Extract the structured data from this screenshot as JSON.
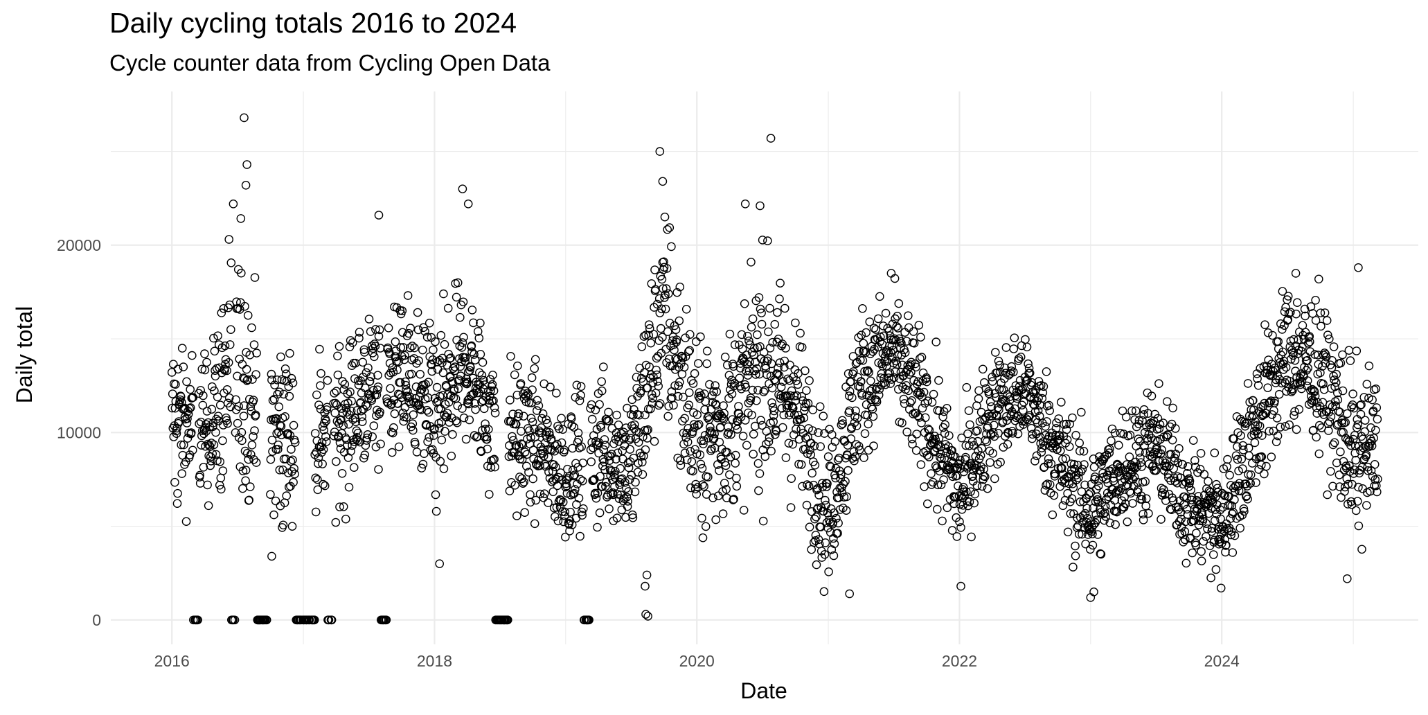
{
  "chart_data": {
    "type": "scatter",
    "title": "Daily cycling totals 2016 to 2024",
    "subtitle": "Cycle counter data from Cycling Open Data",
    "xlabel": "Date",
    "ylabel": "Daily total",
    "x_ticks": [
      "2016",
      "2018",
      "2020",
      "2022",
      "2024"
    ],
    "y_ticks": [
      "0",
      "10000",
      "20000"
    ],
    "xlim": [
      "2015-07-15",
      "2025-07-01"
    ],
    "ylim": [
      -1300,
      28200
    ],
    "grid": true,
    "marker": "open-circle",
    "marker_color": "#000000",
    "grid_color": "#ebebeb",
    "monthly_profile": [
      {
        "month": "2016-01",
        "mean": 11000,
        "spread": 3500
      },
      {
        "month": "2016-04",
        "mean": 10500,
        "spread": 3200
      },
      {
        "month": "2016-07",
        "mean": 14000,
        "spread": 5500
      },
      {
        "month": "2016-10",
        "mean": 10500,
        "spread": 4000
      },
      {
        "month": "2017-01",
        "mean": 10000,
        "spread": 3500
      },
      {
        "month": "2017-04",
        "mean": 10500,
        "spread": 3000
      },
      {
        "month": "2017-07",
        "mean": 12500,
        "spread": 3000
      },
      {
        "month": "2017-10",
        "mean": 13500,
        "spread": 3000
      },
      {
        "month": "2018-01",
        "mean": 11000,
        "spread": 3500
      },
      {
        "month": "2018-04",
        "mean": 14000,
        "spread": 3500
      },
      {
        "month": "2018-07",
        "mean": 10000,
        "spread": 3000
      },
      {
        "month": "2018-10",
        "mean": 10000,
        "spread": 3000
      },
      {
        "month": "2019-01",
        "mean": 8000,
        "spread": 2800
      },
      {
        "month": "2019-04",
        "mean": 9500,
        "spread": 3000
      },
      {
        "month": "2019-07",
        "mean": 8500,
        "spread": 3000
      },
      {
        "month": "2019-10",
        "mean": 17000,
        "spread": 4500
      },
      {
        "month": "2020-01",
        "mean": 10000,
        "spread": 4000
      },
      {
        "month": "2020-04",
        "mean": 11000,
        "spread": 3500
      },
      {
        "month": "2020-07",
        "mean": 14000,
        "spread": 4500
      },
      {
        "month": "2020-10",
        "mean": 12000,
        "spread": 3500
      },
      {
        "month": "2021-01",
        "mean": 6000,
        "spread": 3000
      },
      {
        "month": "2021-04",
        "mean": 13000,
        "spread": 3000
      },
      {
        "month": "2021-07",
        "mean": 14500,
        "spread": 2500
      },
      {
        "month": "2021-10",
        "mean": 11000,
        "spread": 3000
      },
      {
        "month": "2022-01",
        "mean": 7000,
        "spread": 2500
      },
      {
        "month": "2022-04",
        "mean": 11500,
        "spread": 2500
      },
      {
        "month": "2022-07",
        "mean": 12500,
        "spread": 2500
      },
      {
        "month": "2022-10",
        "mean": 9000,
        "spread": 2500
      },
      {
        "month": "2023-01",
        "mean": 6000,
        "spread": 2500
      },
      {
        "month": "2023-04",
        "mean": 8500,
        "spread": 2500
      },
      {
        "month": "2023-07",
        "mean": 9500,
        "spread": 2500
      },
      {
        "month": "2023-10",
        "mean": 6500,
        "spread": 2500
      },
      {
        "month": "2024-01",
        "mean": 5500,
        "spread": 2500
      },
      {
        "month": "2024-04",
        "mean": 10500,
        "spread": 2800
      },
      {
        "month": "2024-07",
        "mean": 14500,
        "spread": 3000
      },
      {
        "month": "2024-10",
        "mean": 13500,
        "spread": 3000
      },
      {
        "month": "2025-01",
        "mean": 9000,
        "spread": 3500
      },
      {
        "month": "2025-03",
        "mean": 9500,
        "spread": 3000
      }
    ],
    "zero_day_clusters": [
      {
        "start": "2016-03-01",
        "end": "2016-03-15"
      },
      {
        "start": "2016-06-15",
        "end": "2016-06-25"
      },
      {
        "start": "2016-08-25",
        "end": "2016-09-30"
      },
      {
        "start": "2016-12-10",
        "end": "2017-02-01"
      },
      {
        "start": "2017-03-10",
        "end": "2017-03-25"
      },
      {
        "start": "2017-08-05",
        "end": "2017-08-20"
      },
      {
        "start": "2018-06-20",
        "end": "2018-07-25"
      },
      {
        "start": "2019-02-20",
        "end": "2019-03-10"
      }
    ],
    "notable_points": [
      {
        "x": "2016-07-20",
        "y": 26800
      },
      {
        "x": "2016-07-28",
        "y": 24300
      },
      {
        "x": "2016-07-25",
        "y": 23200
      },
      {
        "x": "2016-06-20",
        "y": 22200
      },
      {
        "x": "2017-07-30",
        "y": 21600
      },
      {
        "x": "2018-03-20",
        "y": 23000
      },
      {
        "x": "2018-04-05",
        "y": 22200
      },
      {
        "x": "2019-09-20",
        "y": 25000
      },
      {
        "x": "2019-09-28",
        "y": 23400
      },
      {
        "x": "2020-07-25",
        "y": 25700
      },
      {
        "x": "2020-05-15",
        "y": 22200
      },
      {
        "x": "2020-06-25",
        "y": 22100
      },
      {
        "x": "2021-06-25",
        "y": 18500
      },
      {
        "x": "2024-07-25",
        "y": 18500
      },
      {
        "x": "2025-01-15",
        "y": 18800
      },
      {
        "x": "2019-08-15",
        "y": 2400
      },
      {
        "x": "2019-08-10",
        "y": 1800
      },
      {
        "x": "2021-03-01",
        "y": 1400
      },
      {
        "x": "2022-01-05",
        "y": 1800
      },
      {
        "x": "2023-01-01",
        "y": 1200
      },
      {
        "x": "2023-01-10",
        "y": 1500
      },
      {
        "x": "2023-12-30",
        "y": 1700
      },
      {
        "x": "2024-12-15",
        "y": 2200
      },
      {
        "x": "2018-01-15",
        "y": 3000
      },
      {
        "x": "2016-10-05",
        "y": 3400
      },
      {
        "x": "2019-08-12",
        "y": 300
      },
      {
        "x": "2019-08-18",
        "y": 200
      }
    ]
  }
}
